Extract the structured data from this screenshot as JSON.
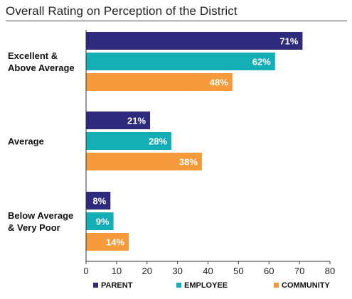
{
  "chart_data": {
    "type": "bar",
    "orientation": "horizontal",
    "title": "Overall Rating on Perception of the District",
    "categories": [
      [
        "Excellent &",
        "Above Average"
      ],
      [
        "Average"
      ],
      [
        "Below Average",
        "& Very Poor"
      ]
    ],
    "series": [
      {
        "name": "PARENT",
        "color": "#2e2a7c",
        "values": [
          71,
          21,
          8
        ],
        "labels": [
          "71%",
          "21%",
          "8%"
        ]
      },
      {
        "name": "EMPLOYEE",
        "color": "#13aeb6",
        "values": [
          62,
          28,
          9
        ],
        "labels": [
          "62%",
          "28%",
          "9%"
        ]
      },
      {
        "name": "COMMUNITY",
        "color": "#f59a3a",
        "values": [
          48,
          38,
          14
        ],
        "labels": [
          "48%",
          "38%",
          "14%"
        ]
      }
    ],
    "xlim": [
      0,
      80
    ],
    "xticks": [
      "0",
      "10",
      "20",
      "30",
      "40",
      "50",
      "60",
      "70",
      "80"
    ],
    "legend_position": "bottom",
    "grid": false
  }
}
